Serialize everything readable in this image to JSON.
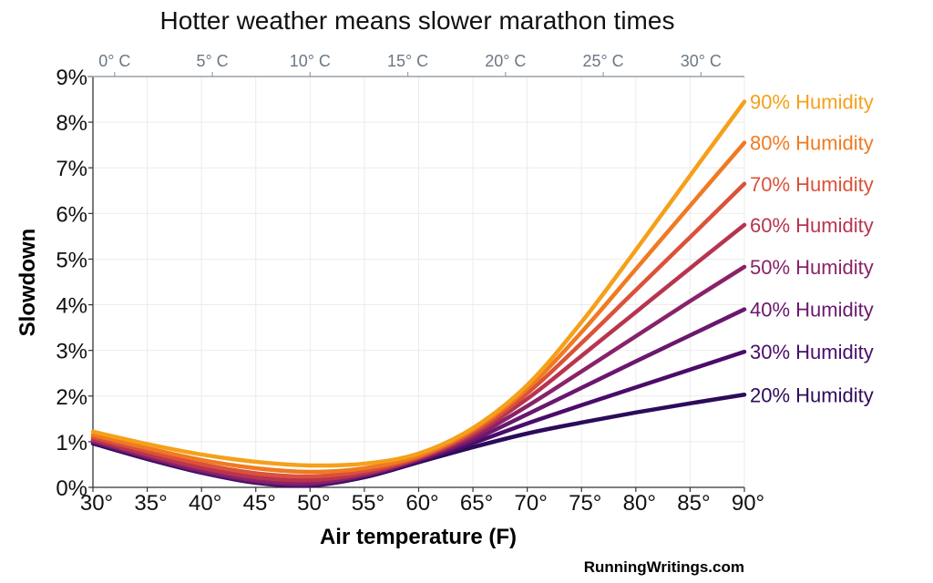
{
  "chart_data": {
    "type": "line",
    "title": "Hotter weather means slower marathon times",
    "xlabel": "Air temperature (F)",
    "ylabel": "Slowdown",
    "xlim": [
      30,
      90
    ],
    "ylim": [
      0,
      9
    ],
    "grid": true,
    "legend": "direct labels at right end of lines",
    "x": [
      30,
      35,
      40,
      45,
      50,
      55,
      60,
      65,
      70,
      75,
      80,
      85,
      90
    ],
    "x_ticks": [
      "30°",
      "35°",
      "40°",
      "45°",
      "50°",
      "55°",
      "60°",
      "65°",
      "70°",
      "75°",
      "80°",
      "85°",
      "90°"
    ],
    "y_ticks": [
      "0%",
      "1%",
      "2%",
      "3%",
      "4%",
      "5%",
      "6%",
      "7%",
      "8%",
      "9%"
    ],
    "secondary_x_axis": {
      "position": "top",
      "ticks": [
        {
          "label": "0° C",
          "fahrenheit": 32
        },
        {
          "label": "5° C",
          "fahrenheit": 41
        },
        {
          "label": "10° C",
          "fahrenheit": 50
        },
        {
          "label": "15° C",
          "fahrenheit": 59
        },
        {
          "label": "20° C",
          "fahrenheit": 68
        },
        {
          "label": "25° C",
          "fahrenheit": 77
        },
        {
          "label": "30° C",
          "fahrenheit": 86
        }
      ]
    },
    "series": [
      {
        "name": "20% Humidity",
        "color": "#2d0b5a",
        "values": [
          0.96,
          0.62,
          0.32,
          0.1,
          0.04,
          0.22,
          0.55,
          0.88,
          1.18,
          1.42,
          1.64,
          1.84,
          2.03
        ]
      },
      {
        "name": "30% Humidity",
        "color": "#4a0c6b",
        "values": [
          0.98,
          0.64,
          0.33,
          0.11,
          0.05,
          0.24,
          0.58,
          0.97,
          1.4,
          1.8,
          2.19,
          2.58,
          2.97
        ]
      },
      {
        "name": "40% Humidity",
        "color": "#6a176e",
        "values": [
          1.0,
          0.66,
          0.35,
          0.13,
          0.07,
          0.26,
          0.6,
          1.04,
          1.6,
          2.18,
          2.76,
          3.33,
          3.9
        ]
      },
      {
        "name": "50% Humidity",
        "color": "#892269",
        "values": [
          1.02,
          0.68,
          0.38,
          0.16,
          0.1,
          0.28,
          0.62,
          1.1,
          1.78,
          2.54,
          3.31,
          4.08,
          4.83
        ]
      },
      {
        "name": "60% Humidity",
        "color": "#b8344e",
        "values": [
          1.05,
          0.72,
          0.43,
          0.22,
          0.16,
          0.31,
          0.64,
          1.16,
          1.94,
          2.88,
          3.84,
          4.8,
          5.75
        ]
      },
      {
        "name": "70% Humidity",
        "color": "#db513a",
        "values": [
          1.1,
          0.79,
          0.51,
          0.31,
          0.24,
          0.36,
          0.66,
          1.21,
          2.06,
          3.16,
          4.32,
          5.48,
          6.65
        ]
      },
      {
        "name": "80% Humidity",
        "color": "#ef7a21",
        "values": [
          1.15,
          0.86,
          0.6,
          0.42,
          0.34,
          0.42,
          0.69,
          1.26,
          2.16,
          3.4,
          4.78,
          6.17,
          7.55
        ]
      },
      {
        "name": "90% Humidity",
        "color": "#f5a01a",
        "values": [
          1.22,
          0.95,
          0.72,
          0.56,
          0.48,
          0.52,
          0.74,
          1.3,
          2.24,
          3.62,
          5.2,
          6.83,
          8.45
        ]
      }
    ]
  },
  "credit": "RunningWritings.com"
}
